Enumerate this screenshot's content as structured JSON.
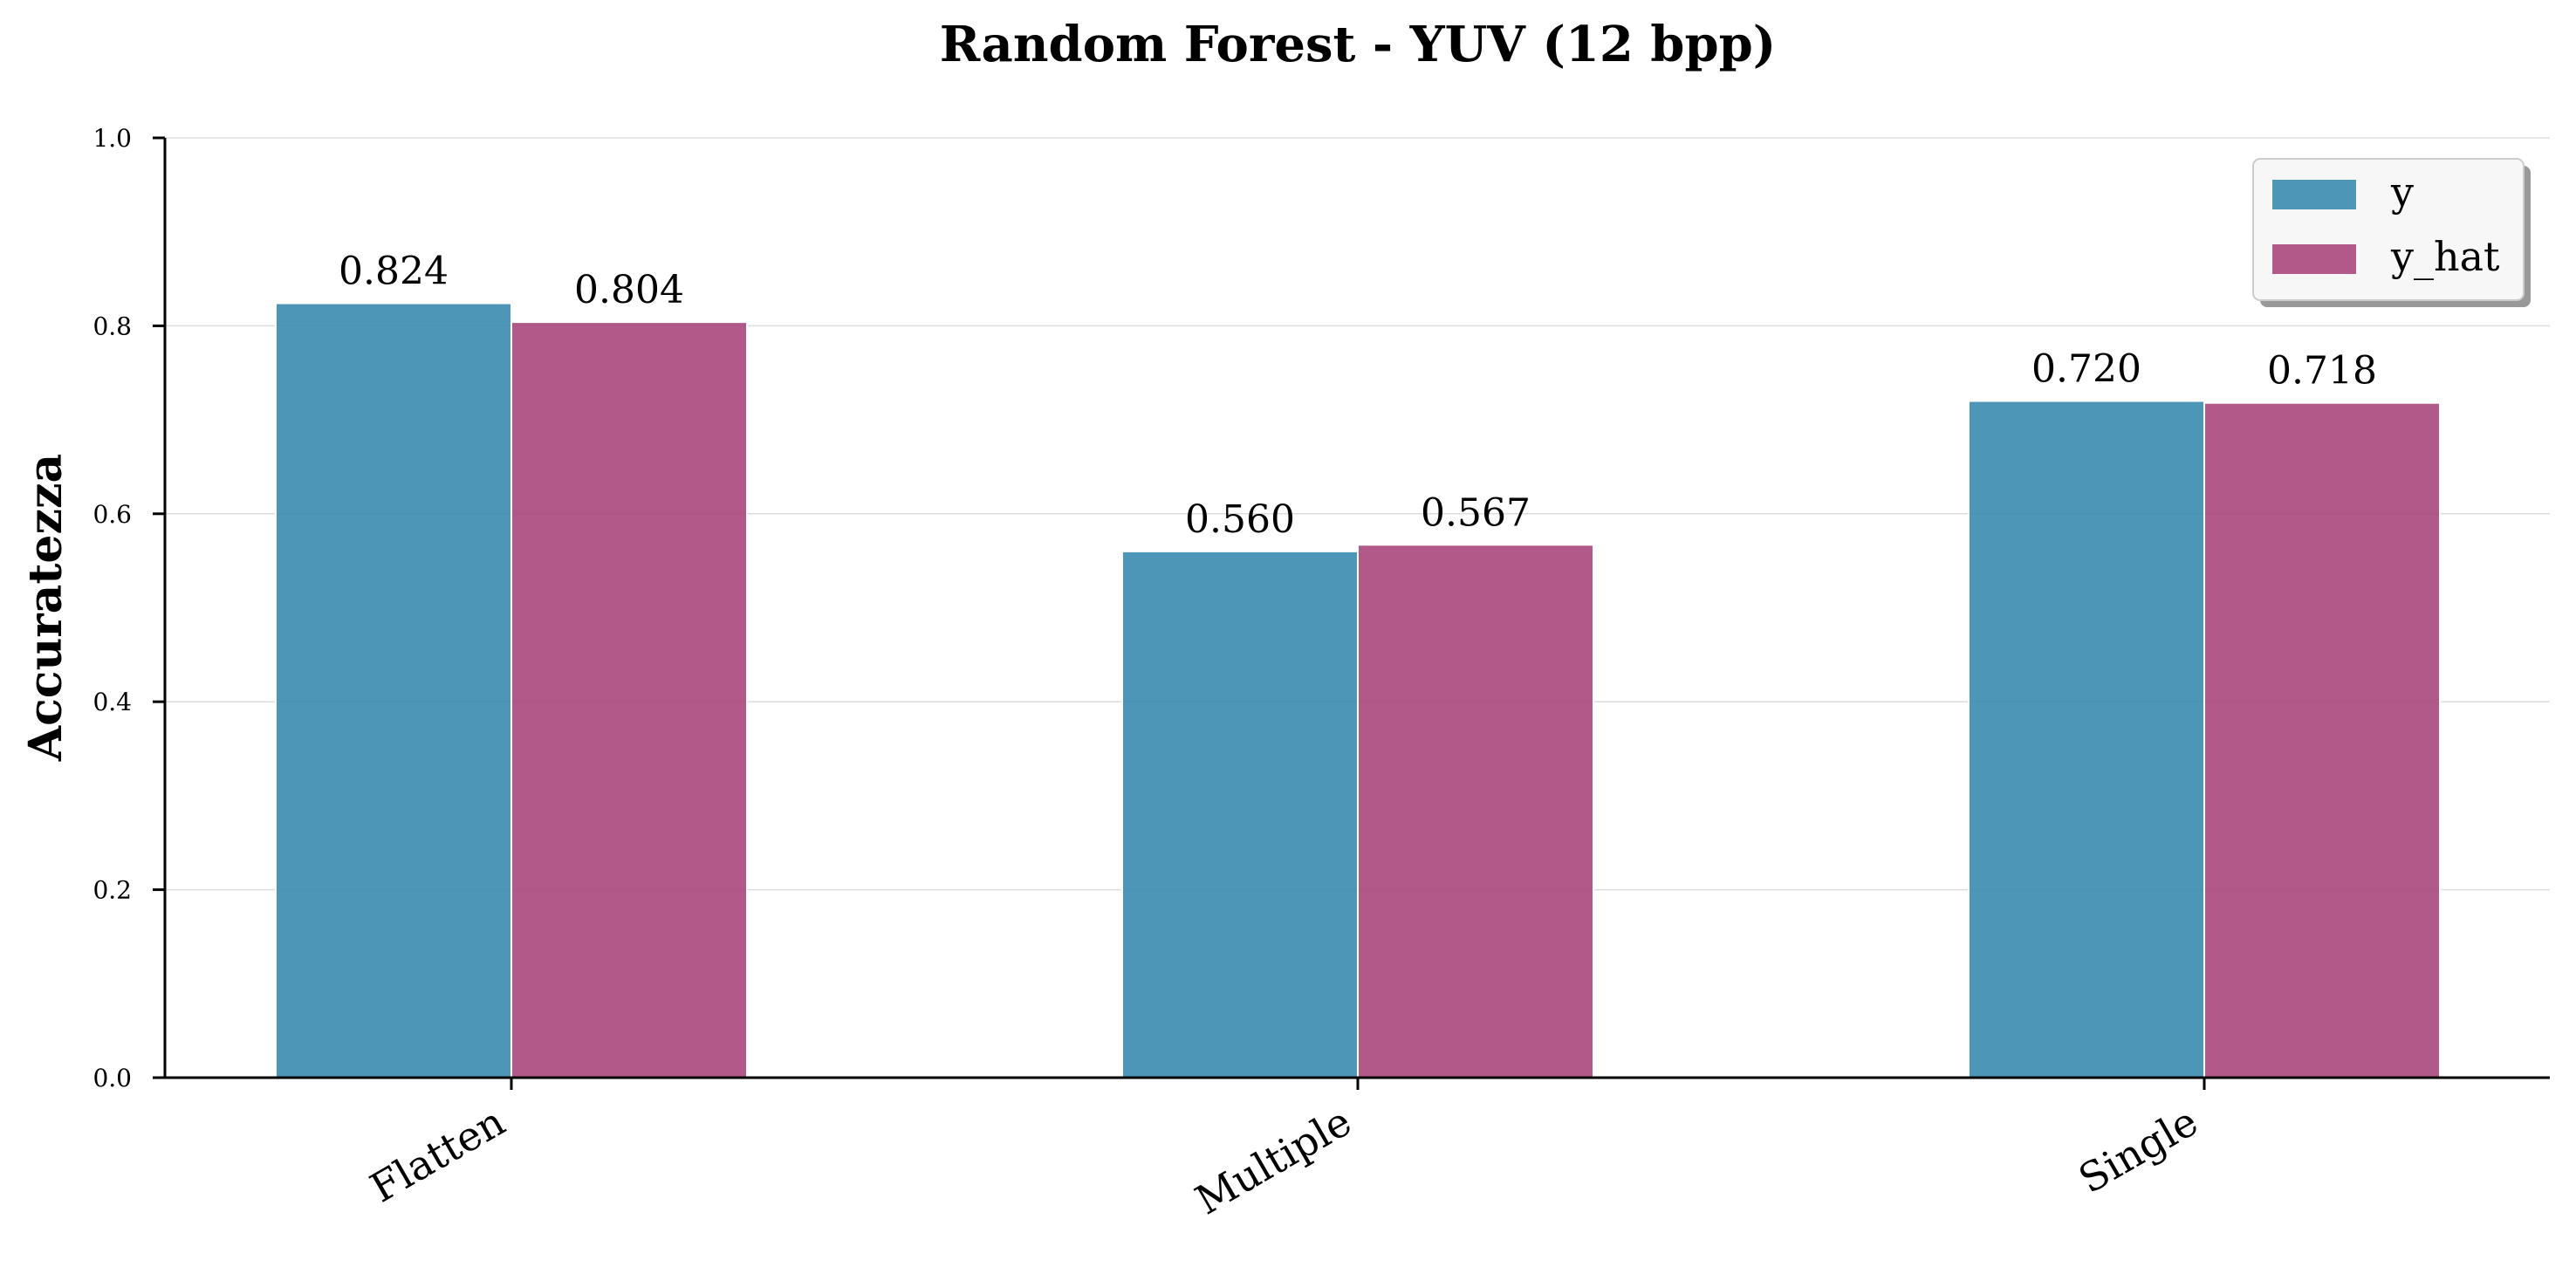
{
  "chart_data": {
    "type": "bar",
    "title": "Random Forest - YUV (12 bpp)",
    "xlabel": "",
    "ylabel": "Accuratezza",
    "ylim": [
      0,
      1.0
    ],
    "yticks": [
      "0.0",
      "0.2",
      "0.4",
      "0.6",
      "0.8",
      "1.0"
    ],
    "categories": [
      "Flatten",
      "Multiple",
      "Single"
    ],
    "series": [
      {
        "name": "y",
        "values": [
          0.824,
          0.56,
          0.72
        ],
        "labels": [
          "0.824",
          "0.560",
          "0.720"
        ],
        "color": "#3a8bb0"
      },
      {
        "name": "y_hat",
        "values": [
          0.804,
          0.567,
          0.718
        ],
        "labels": [
          "0.804",
          "0.567",
          "0.718"
        ],
        "color": "#a8477b"
      }
    ],
    "grid": "horizontal",
    "legend_position": "top-right"
  }
}
